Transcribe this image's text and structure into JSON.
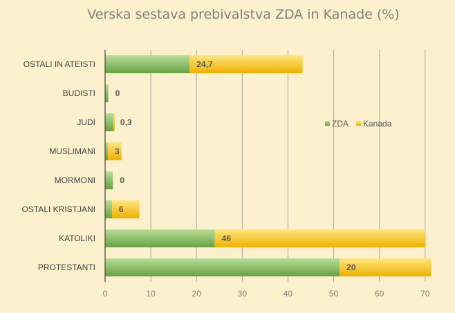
{
  "chart_data": {
    "type": "bar",
    "orientation": "horizontal",
    "stacked": true,
    "title": "Verska sestava prebivalstva ZDA in Kanade (%)",
    "categories": [
      "OSTALI IN ATEISTI",
      "BUDISTI",
      "JUDI",
      "MUSLIMANI",
      "MORMONI",
      "OSTALI KRISTJANI",
      "KATOLIKI",
      "PROTESTANTI"
    ],
    "series": [
      {
        "name": "ZDA",
        "values": [
          18.5,
          0.7,
          1.8,
          0.6,
          1.7,
          1.5,
          24,
          51.3
        ],
        "color_light": "#b2d98f",
        "color_dark": "#6fa84a"
      },
      {
        "name": "Kanada",
        "values": [
          24.7,
          0,
          0.3,
          3,
          0,
          6,
          46,
          20
        ],
        "color_light": "#ffe37a",
        "color_dark": "#f0b400"
      }
    ],
    "data_labels": [
      "24,7",
      "0",
      "0,3",
      "3",
      "0",
      "6",
      "46",
      "20"
    ],
    "xlim": [
      0,
      72
    ],
    "xticks": [
      "0",
      "10",
      "20",
      "30",
      "40",
      "50",
      "60",
      "70"
    ],
    "xtick_values": [
      0,
      10,
      20,
      30,
      40,
      50,
      60,
      70
    ],
    "grid": true,
    "legend_position": "right-middle"
  }
}
